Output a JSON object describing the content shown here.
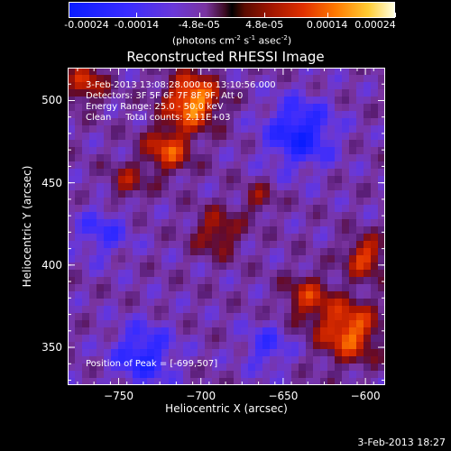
{
  "colorbar": {
    "ticks": [
      "-0.00024",
      "-0.00014",
      "-4.8e-05",
      "4.8e-05",
      "0.00014",
      "0.00024"
    ],
    "tick_values": [
      -0.00024,
      -0.00014,
      -4.8e-05,
      4.8e-05,
      0.00014,
      0.00024
    ],
    "range": [
      -0.00024,
      0.00024
    ],
    "unit_prefix": "(photons cm",
    "unit_exp1": "-2",
    "unit_mid": " s",
    "unit_exp2": "-1",
    "unit_mid2": " asec",
    "unit_exp3": "-2",
    "unit_suffix": ")"
  },
  "chart_data": {
    "type": "heatmap",
    "title": "Reconstructed RHESSI Image",
    "xlabel": "Heliocentric X (arcsec)",
    "ylabel": "Heliocentric Y (arcsec)",
    "xlim": [
      -781,
      -588
    ],
    "ylim": [
      327,
      520
    ],
    "xticks": [
      -750,
      -700,
      -650,
      -600
    ],
    "yticks": [
      350,
      400,
      450,
      500
    ],
    "xtick_labels": [
      "−750",
      "−700",
      "−650",
      "−600"
    ],
    "ytick_labels": [
      "350",
      "400",
      "450",
      "500"
    ],
    "colors": {
      "low": "#0a1cff",
      "mid_low": "#6a38d8",
      "zero": "#000000",
      "mid_high": "#e03000",
      "high": "#ffffe0"
    },
    "annotations": [
      "3-Feb-2013 13:08:28.000 to 13:10:56.000",
      "Detectors: 3F 5F 6F 7F 8F 9F, Att 0",
      "Energy Range: 25.0 - 50.0 keV",
      "Clean     Total counts: 2.11E+03"
    ],
    "peak_label": "Position of Peak = [-699,507]",
    "peak_position": [
      -699,
      507
    ],
    "bright_regions": [
      {
        "x": -705,
        "y": 500,
        "level": 1.0,
        "size": 16
      },
      {
        "x": -720,
        "y": 470,
        "level": 0.7,
        "size": 14
      },
      {
        "x": -770,
        "y": 510,
        "level": 0.6,
        "size": 12
      },
      {
        "x": -610,
        "y": 360,
        "level": 0.85,
        "size": 18
      },
      {
        "x": -635,
        "y": 380,
        "level": 0.55,
        "size": 14
      },
      {
        "x": -600,
        "y": 405,
        "level": 0.7,
        "size": 12
      },
      {
        "x": -690,
        "y": 420,
        "level": 0.5,
        "size": 14
      },
      {
        "x": -745,
        "y": 450,
        "level": 0.4,
        "size": 12
      },
      {
        "x": -665,
        "y": 440,
        "level": 0.35,
        "size": 10
      }
    ],
    "dark_regions": [
      {
        "x": -640,
        "y": 480,
        "level": -0.7,
        "size": 20
      },
      {
        "x": -735,
        "y": 345,
        "level": -0.6,
        "size": 18
      },
      {
        "x": -760,
        "y": 420,
        "level": -0.4,
        "size": 16
      },
      {
        "x": -660,
        "y": 350,
        "level": -0.4,
        "size": 14
      }
    ]
  },
  "footer": {
    "date": "3-Feb-2013 18:27"
  }
}
